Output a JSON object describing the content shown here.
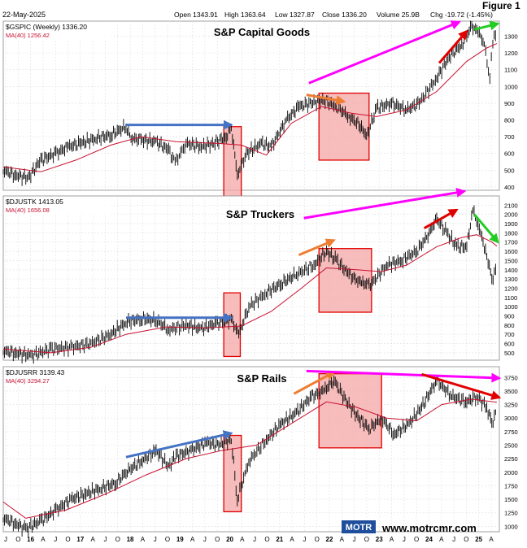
{
  "header": {
    "date": "22-May-2025",
    "figure": "Figure 1",
    "open": "Open 1343.91",
    "high": "High 1363.64",
    "low": "Low 1327.87",
    "close": "Close 1336.20",
    "volume": "Volume 25.9B",
    "chg": "Chg -19.72 (-1.45%)"
  },
  "footer": {
    "logo": "MOTR",
    "url": "www.motrcmr.com"
  },
  "x_axis": {
    "labels": [
      "J",
      "O",
      "16",
      "A",
      "J",
      "O",
      "17",
      "A",
      "J",
      "O",
      "18",
      "A",
      "J",
      "O",
      "19",
      "A",
      "J",
      "O",
      "20",
      "A",
      "J",
      "O",
      "21",
      "A",
      "J",
      "O",
      "22",
      "A",
      "J",
      "O",
      "23",
      "A",
      "J",
      "O",
      "24",
      "A",
      "J",
      "O",
      "25",
      "A"
    ],
    "years": [
      "16",
      "17",
      "18",
      "19",
      "20",
      "21",
      "22",
      "23",
      "24",
      "25"
    ]
  },
  "colors": {
    "price": "#000000",
    "ma": "#c8102e",
    "blue": "#4472c4",
    "orange": "#ed7d31",
    "magenta": "#ff00ff",
    "red": "#e00000",
    "green": "#22cc22",
    "box_fill": "#f4a6a6",
    "box_edge": "#e00000"
  },
  "chart_data": [
    {
      "type": "line",
      "title": "S&P Capital Goods",
      "legend_symbol": "$GSPIC (Weekly) 1336.20",
      "legend_ma": "MA(40) 1256.42",
      "series": [
        {
          "name": "$GSPIC (Weekly)",
          "x": [
            2015.55,
            2015.8,
            2016.05,
            2016.3,
            2016.6,
            2016.85,
            2017.1,
            2017.4,
            2017.7,
            2018.0,
            2018.1,
            2018.3,
            2018.6,
            2018.85,
            2018.98,
            2019.2,
            2019.5,
            2019.75,
            2020.0,
            2020.1,
            2020.22,
            2020.4,
            2020.7,
            2020.9,
            2021.2,
            2021.45,
            2021.7,
            2021.95,
            2022.2,
            2022.45,
            2022.7,
            2022.8,
            2023.0,
            2023.3,
            2023.6,
            2023.85,
            2024.2,
            2024.45,
            2024.7,
            2024.9,
            2025.05,
            2025.15,
            2025.26,
            2025.32,
            2025.4
          ],
          "values": [
            500,
            470,
            455,
            560,
            600,
            640,
            660,
            690,
            710,
            760,
            690,
            680,
            670,
            620,
            545,
            660,
            640,
            660,
            700,
            760,
            470,
            600,
            660,
            640,
            800,
            880,
            900,
            920,
            880,
            820,
            760,
            700,
            870,
            900,
            860,
            900,
            1050,
            1180,
            1250,
            1360,
            1320,
            1250,
            1050,
            1260,
            1336
          ]
        },
        {
          "name": "MA(40)",
          "x": [
            2015.55,
            2016.3,
            2017.0,
            2017.7,
            2018.3,
            2019.0,
            2019.8,
            2020.3,
            2020.8,
            2021.3,
            2021.9,
            2022.5,
            2023.0,
            2023.6,
            2024.2,
            2024.8,
            2025.2,
            2025.4
          ],
          "values": [
            520,
            490,
            560,
            650,
            700,
            670,
            660,
            650,
            590,
            780,
            880,
            840,
            820,
            860,
            970,
            1150,
            1230,
            1256
          ]
        }
      ],
      "y_ticks": [
        400,
        500,
        600,
        700,
        800,
        900,
        1000,
        1100,
        1200,
        1300
      ],
      "ylim": [
        380,
        1390
      ]
    },
    {
      "type": "line",
      "title": "S&P Truckers",
      "legend_symbol": "$DJUSTK 1413.05",
      "legend_ma": "MA(40) 1656.08",
      "series": [
        {
          "name": "$DJUSTK",
          "x": [
            2015.55,
            2015.8,
            2016.1,
            2016.5,
            2016.9,
            2017.3,
            2017.7,
            2018.0,
            2018.3,
            2018.6,
            2018.85,
            2019.2,
            2019.5,
            2019.8,
            2020.1,
            2020.25,
            2020.45,
            2020.8,
            2021.1,
            2021.4,
            2021.75,
            2022.0,
            2022.2,
            2022.45,
            2022.7,
            2022.9,
            2023.2,
            2023.5,
            2023.8,
            2024.0,
            2024.2,
            2024.4,
            2024.6,
            2024.8,
            2024.92,
            2025.05,
            2025.2,
            2025.3,
            2025.4
          ],
          "values": [
            520,
            500,
            470,
            540,
            560,
            600,
            700,
            830,
            870,
            850,
            750,
            800,
            760,
            820,
            860,
            700,
            1000,
            1150,
            1250,
            1350,
            1450,
            1600,
            1500,
            1350,
            1250,
            1250,
            1450,
            1500,
            1600,
            1750,
            1950,
            1800,
            1650,
            1650,
            2050,
            1850,
            1550,
            1300,
            1413
          ]
        },
        {
          "name": "MA(40)",
          "x": [
            2015.55,
            2016.5,
            2017.3,
            2018.0,
            2018.8,
            2019.6,
            2020.3,
            2020.9,
            2021.5,
            2022.0,
            2022.6,
            2023.1,
            2023.6,
            2024.2,
            2024.7,
            2025.0,
            2025.3,
            2025.4
          ],
          "values": [
            540,
            500,
            560,
            700,
            780,
            770,
            790,
            950,
            1200,
            1420,
            1400,
            1380,
            1450,
            1650,
            1750,
            1780,
            1700,
            1656
          ]
        }
      ],
      "y_ticks": [
        500,
        600,
        700,
        800,
        900,
        1000,
        1100,
        1200,
        1300,
        1400,
        1500,
        1600,
        1700,
        1800,
        1900,
        2000,
        2100
      ],
      "ylim": [
        420,
        2200
      ]
    },
    {
      "type": "line",
      "title": "S&P Rails",
      "legend_symbol": "$DJUSRR 3139.43",
      "legend_ma": "MA(40) 3294.27",
      "series": [
        {
          "name": "$DJUSRR",
          "x": [
            2015.55,
            2015.8,
            2016.0,
            2016.3,
            2016.6,
            2016.9,
            2017.2,
            2017.5,
            2017.8,
            2018.0,
            2018.3,
            2018.6,
            2018.85,
            2019.0,
            2019.3,
            2019.6,
            2019.85,
            2020.1,
            2020.22,
            2020.45,
            2020.8,
            2021.1,
            2021.4,
            2021.7,
            2021.95,
            2022.15,
            2022.4,
            2022.65,
            2022.85,
            2023.1,
            2023.35,
            2023.65,
            2023.9,
            2024.2,
            2024.5,
            2024.8,
            2025.0,
            2025.2,
            2025.3,
            2025.4
          ],
          "values": [
            1150,
            1050,
            950,
            1100,
            1300,
            1500,
            1600,
            1700,
            1800,
            2000,
            2200,
            2400,
            2100,
            2300,
            2400,
            2550,
            2500,
            2600,
            1500,
            2200,
            2600,
            2900,
            3100,
            3400,
            3500,
            3700,
            3300,
            3000,
            2800,
            3000,
            2700,
            2900,
            3200,
            3700,
            3400,
            3300,
            3400,
            3200,
            2900,
            3139
          ]
        },
        {
          "name": "MA(40)",
          "x": [
            2015.55,
            2016.0,
            2016.8,
            2017.6,
            2018.4,
            2019.2,
            2019.9,
            2020.6,
            2021.3,
            2022.0,
            2022.6,
            2023.2,
            2023.8,
            2024.3,
            2024.9,
            2025.4
          ],
          "values": [
            1450,
            1150,
            1300,
            1600,
            1950,
            2250,
            2400,
            2500,
            2900,
            3300,
            3200,
            3000,
            2950,
            3250,
            3350,
            3294
          ]
        }
      ],
      "y_ticks": [
        1000,
        1250,
        1500,
        1750,
        2000,
        2250,
        2500,
        2750,
        3000,
        3250,
        3500,
        3750
      ],
      "ylim": [
        900,
        3950
      ]
    }
  ]
}
